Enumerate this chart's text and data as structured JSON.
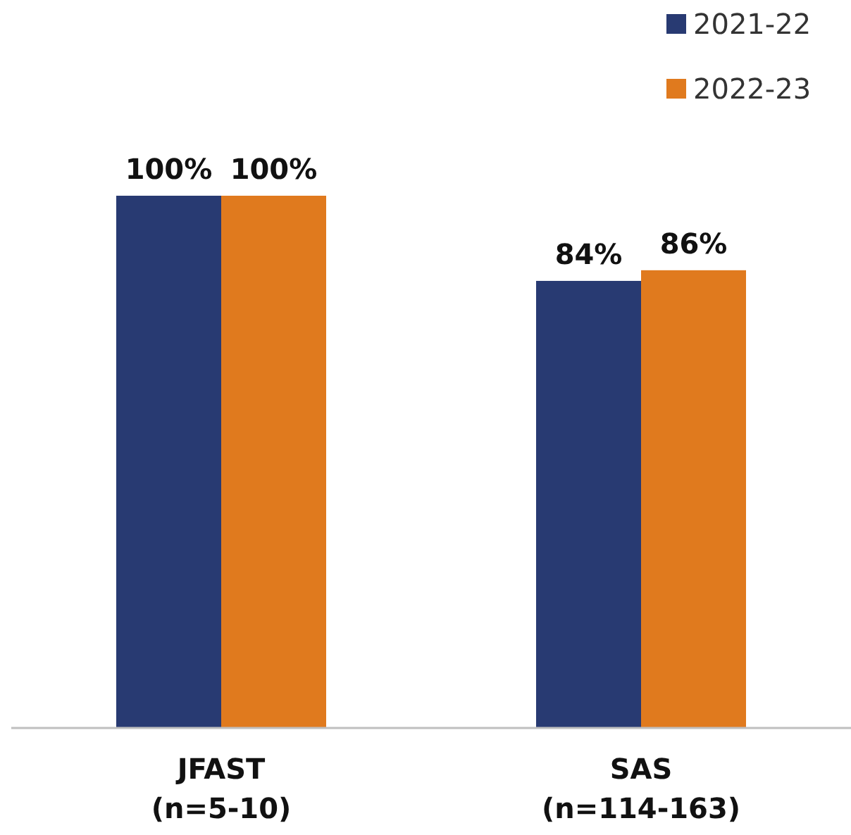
{
  "chart_data": {
    "type": "bar",
    "categories": [
      "JFAST\n(n=5-10)",
      "SAS\n(n=114-163)"
    ],
    "series": [
      {
        "name": "2021-22",
        "color": "#283a72",
        "values": [
          100,
          84
        ],
        "value_labels": [
          "100%",
          "84%"
        ]
      },
      {
        "name": "2022-23",
        "color": "#e07a1e",
        "values": [
          100,
          86
        ],
        "value_labels": [
          "100%",
          "86%"
        ]
      }
    ],
    "legend": "top right"
  }
}
